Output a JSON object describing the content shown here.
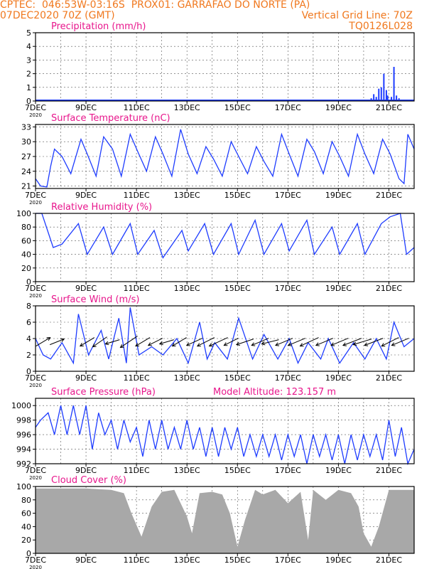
{
  "header": {
    "line1_left": "CPTEC:  046:53W-03:16S  PROX01: GARRAFAO DO NORTE (PA)",
    "line2_left": "07DEC2020 70Z (GMT)",
    "line2_right": "Vertical Grid Line: 70Z",
    "line3_right": "TQ0126L028"
  },
  "colors": {
    "header": "#f0781e",
    "title": "#e8168c",
    "series": "#1e3cff",
    "cloud": "#a8a8a8",
    "grid": "#555555"
  },
  "x_axis": {
    "labels": [
      "7DEC",
      "9DEC",
      "11DEC",
      "13DEC",
      "15DEC",
      "17DEC",
      "19DEC",
      "21DEC"
    ],
    "sublabel": "2020"
  },
  "chart_data": [
    {
      "id": "precip",
      "type": "bar",
      "title": "Precipitation (mm/h)",
      "ylim": [
        0,
        5
      ],
      "yticks": [
        0,
        1,
        2,
        3,
        4,
        5
      ],
      "x": [
        13.3,
        13.4,
        13.5,
        13.6,
        13.7,
        13.8,
        13.9,
        13.95,
        14.1,
        14.2,
        14.3,
        14.4
      ],
      "values": [
        0.2,
        0.5,
        0.3,
        0.9,
        1.0,
        2.0,
        0.8,
        0.4,
        0.3,
        2.5,
        0.4,
        0.2
      ]
    },
    {
      "id": "temp",
      "type": "line",
      "title": "Surface Temperature (nC)",
      "ylim": [
        20.5,
        33.5
      ],
      "yticks": [
        21,
        24,
        27,
        30,
        33
      ],
      "x": [
        0,
        0.2,
        0.45,
        0.6,
        0.75,
        1.05,
        1.4,
        1.8,
        2.05,
        2.4,
        2.7,
        3.05,
        3.4,
        3.75,
        4.05,
        4.4,
        4.75,
        5.05,
        5.4,
        5.75,
        6.05,
        6.4,
        6.75,
        7.05,
        7.4,
        7.75,
        8.05,
        8.4,
        8.75,
        9.05,
        9.4,
        9.75,
        10.05,
        10.4,
        10.75,
        11.05,
        11.4,
        11.75,
        12.05,
        12.4,
        12.75,
        13.05,
        13.4,
        13.75,
        14.05,
        14.4,
        14.6,
        14.75,
        15.0
      ],
      "values": [
        22.5,
        21,
        20.8,
        25,
        28.5,
        27,
        23.5,
        30.5,
        27.5,
        23,
        31,
        28.5,
        23,
        31.5,
        28,
        24,
        31,
        27.5,
        23,
        32.5,
        27.5,
        23.5,
        29,
        26.5,
        23,
        30,
        27,
        23.5,
        29,
        26,
        23,
        31.5,
        27.5,
        23,
        30.5,
        28,
        23.5,
        30,
        27,
        23,
        31.5,
        27.5,
        23.5,
        30.5,
        27.5,
        22.5,
        21.5,
        31.5,
        28.5
      ]
    },
    {
      "id": "rh",
      "type": "line",
      "title": "Relative Humidity (%)",
      "ylim": [
        0,
        100
      ],
      "yticks": [
        0,
        20,
        40,
        60,
        80,
        100
      ],
      "x": [
        0,
        0.25,
        0.7,
        1.05,
        1.7,
        2.05,
        2.7,
        3.05,
        3.75,
        4.05,
        4.7,
        5.05,
        5.8,
        6.05,
        6.7,
        7.05,
        7.75,
        8.05,
        8.7,
        9.05,
        9.75,
        10.05,
        10.75,
        11.05,
        11.75,
        12.05,
        12.75,
        13.05,
        13.7,
        14.05,
        14.45,
        14.7,
        15.0
      ],
      "values": [
        100,
        100,
        50,
        55,
        85,
        40,
        80,
        40,
        85,
        40,
        75,
        35,
        75,
        45,
        85,
        40,
        85,
        40,
        90,
        40,
        85,
        45,
        90,
        40,
        80,
        40,
        85,
        40,
        85,
        95,
        100,
        40,
        50
      ]
    },
    {
      "id": "wind",
      "type": "line",
      "title": "Surface Wind (m/s)",
      "ylim": [
        0,
        8
      ],
      "yticks": [
        0,
        2,
        4,
        6,
        8
      ],
      "x": [
        0,
        0.3,
        0.6,
        1.05,
        1.5,
        1.7,
        2.1,
        2.6,
        2.9,
        3.3,
        3.6,
        3.75,
        4.1,
        4.6,
        5.05,
        5.6,
        6.05,
        6.5,
        6.8,
        7.1,
        7.6,
        8.05,
        8.6,
        9.05,
        9.6,
        10.05,
        10.4,
        10.8,
        11.3,
        11.6,
        12.05,
        12.6,
        13.05,
        13.5,
        13.9,
        14.2,
        14.6,
        15.0
      ],
      "values": [
        4,
        2,
        1.5,
        3.5,
        1,
        7,
        2,
        5,
        1.5,
        6.5,
        1,
        7.8,
        2,
        3,
        2,
        4,
        1,
        6,
        1.5,
        3.5,
        1.5,
        6.5,
        1.5,
        4.5,
        1.5,
        4,
        1,
        3.5,
        1.5,
        4,
        1,
        3.5,
        1.5,
        4,
        1.5,
        6,
        3,
        4
      ],
      "vectors": {
        "x": [
          0.3,
          0.85,
          2.05,
          2.55,
          3.05,
          3.7,
          4.25,
          4.75,
          5.2,
          5.7,
          6.3,
          6.75,
          7.25,
          7.75,
          8.3,
          8.9,
          9.3,
          9.85,
          10.35,
          10.85,
          11.45,
          12.05,
          12.55,
          12.95,
          13.4,
          14.05,
          14.45
        ],
        "u": [
          -1,
          -1,
          1,
          1,
          1,
          1.2,
          1,
          1,
          1,
          1,
          1.1,
          1.2,
          1.3,
          1,
          1.2,
          1.2,
          1.2,
          1.2,
          1.2,
          1.3,
          1.2,
          1.2,
          1.3,
          1.3,
          1.3,
          1.2,
          1.2
        ],
        "v": [
          -0.6,
          -0.4,
          0.6,
          0.7,
          0.3,
          0.8,
          0.6,
          0.5,
          0.3,
          0.6,
          0.5,
          0.6,
          0.6,
          0.5,
          0.4,
          0.5,
          0.3,
          0.5,
          0.5,
          0.6,
          0.5,
          0.5,
          0.5,
          0.4,
          0.5,
          0.6,
          0.5
        ]
      }
    },
    {
      "id": "pres",
      "type": "line",
      "title": "Surface Pressure (hPa)",
      "annotation": "Model Altitude: 123.157 m",
      "ylim": [
        992,
        1001
      ],
      "yticks": [
        992,
        994,
        996,
        998,
        1000
      ],
      "x": [
        0,
        0.2,
        0.5,
        0.75,
        1.0,
        1.25,
        1.5,
        1.75,
        2.0,
        2.25,
        2.5,
        2.75,
        3.0,
        3.25,
        3.5,
        3.75,
        4.0,
        4.25,
        4.5,
        4.75,
        5.0,
        5.25,
        5.5,
        5.75,
        6.0,
        6.25,
        6.5,
        6.75,
        7.0,
        7.25,
        7.5,
        7.75,
        8.0,
        8.25,
        8.5,
        8.75,
        9.0,
        9.25,
        9.5,
        9.75,
        10.0,
        10.25,
        10.5,
        10.75,
        11.0,
        11.25,
        11.5,
        11.75,
        12.0,
        12.25,
        12.5,
        12.75,
        13.0,
        13.25,
        13.5,
        13.75,
        14.0,
        14.25,
        14.5,
        14.75,
        15.0
      ],
      "values": [
        997,
        998,
        999,
        996,
        1000,
        996,
        1000,
        996,
        1000,
        994,
        999,
        996,
        998,
        994,
        998,
        995,
        997,
        993,
        998,
        994,
        998,
        994,
        997,
        994,
        998,
        994,
        997,
        993,
        997,
        993,
        997,
        994,
        997,
        993,
        996,
        993,
        996,
        993,
        996,
        992.5,
        996,
        993,
        996,
        992,
        996,
        993,
        996,
        992.5,
        996,
        992,
        996,
        992.5,
        996,
        993,
        996,
        992.5,
        998,
        993,
        997,
        992,
        994
      ]
    },
    {
      "id": "cloud",
      "type": "area",
      "title": "Cloud Cover (%)",
      "ylim": [
        0,
        100
      ],
      "yticks": [
        0,
        20,
        40,
        60,
        80,
        100
      ],
      "x": [
        0,
        2.0,
        3.0,
        3.5,
        3.8,
        4.2,
        4.6,
        5.0,
        5.5,
        6.0,
        6.2,
        6.5,
        7.0,
        7.4,
        7.7,
        8.0,
        8.3,
        8.7,
        9.0,
        9.5,
        10.0,
        10.5,
        10.8,
        11.0,
        11.5,
        12.0,
        12.5,
        12.8,
        13.0,
        13.3,
        13.6,
        14.0,
        14.5,
        15.0
      ],
      "values": [
        97,
        97,
        95,
        90,
        60,
        25,
        70,
        92,
        95,
        55,
        30,
        90,
        92,
        88,
        60,
        10,
        50,
        95,
        88,
        95,
        75,
        92,
        20,
        95,
        80,
        95,
        90,
        70,
        30,
        10,
        40,
        95,
        95,
        95
      ]
    }
  ]
}
